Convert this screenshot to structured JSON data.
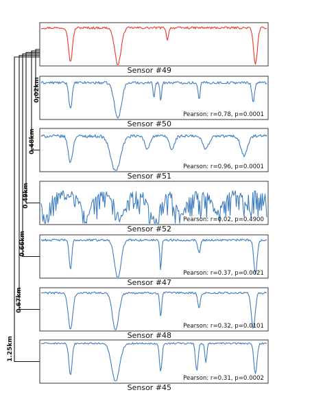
{
  "chart_data": {
    "type": "line",
    "colors": {
      "reference": "#ee3322",
      "comparison": "#3b7bbf"
    },
    "tree_distances": [
      "0.02km",
      "0.48km",
      "0.49km",
      "0.66km",
      "0.67km",
      "1.25km"
    ],
    "panels": [
      {
        "sensor": "Sensor #49",
        "stat": "",
        "role": "reference",
        "baseline": 0.88,
        "noise": 0.05,
        "chaos": 0,
        "dips": [
          [
            0.13,
            0.78,
            0.012
          ],
          [
            0.34,
            0.85,
            0.02
          ],
          [
            0.56,
            0.3,
            0.006
          ],
          [
            0.95,
            0.83,
            0.012
          ]
        ]
      },
      {
        "sensor": "Sensor #50",
        "stat": "Pearson: r=0.78, p=0.0001",
        "role": "comparison",
        "baseline": 0.85,
        "noise": 0.06,
        "chaos": 0,
        "dips": [
          [
            0.13,
            0.6,
            0.01
          ],
          [
            0.34,
            0.82,
            0.022
          ],
          [
            0.5,
            0.35,
            0.005
          ],
          [
            0.53,
            0.45,
            0.005
          ],
          [
            0.7,
            0.4,
            0.006
          ],
          [
            0.94,
            0.45,
            0.008
          ]
        ]
      },
      {
        "sensor": "Sensor #51",
        "stat": "Pearson: r=0.96, p=0.0001",
        "role": "comparison",
        "baseline": 0.82,
        "noise": 0.07,
        "chaos": 0,
        "dips": [
          [
            0.13,
            0.6,
            0.014
          ],
          [
            0.33,
            0.82,
            0.03
          ],
          [
            0.47,
            0.3,
            0.015
          ],
          [
            0.58,
            0.32,
            0.015
          ],
          [
            0.73,
            0.28,
            0.02
          ],
          [
            0.9,
            0.45,
            0.02
          ]
        ]
      },
      {
        "sensor": "Sensor #52",
        "stat": "Pearson: r=0.02, p=0.4900",
        "role": "comparison",
        "baseline": 0.72,
        "noise": 0.15,
        "chaos": 0.55,
        "dips": [
          [
            0.02,
            0.6,
            0.02
          ],
          [
            0.2,
            0.5,
            0.03
          ],
          [
            0.35,
            0.55,
            0.03
          ],
          [
            0.5,
            0.6,
            0.03
          ],
          [
            0.62,
            0.5,
            0.03
          ],
          [
            0.78,
            0.45,
            0.03
          ]
        ]
      },
      {
        "sensor": "Sensor #47",
        "stat": "Pearson: r=0.37, p=0.0021",
        "role": "comparison",
        "baseline": 0.88,
        "noise": 0.05,
        "chaos": 0,
        "dips": [
          [
            0.13,
            0.7,
            0.008
          ],
          [
            0.34,
            0.87,
            0.02
          ],
          [
            0.53,
            0.72,
            0.005
          ],
          [
            0.7,
            0.3,
            0.008
          ],
          [
            0.95,
            0.8,
            0.01
          ]
        ]
      },
      {
        "sensor": "Sensor #48",
        "stat": "Pearson: r=0.32, p=0.0101",
        "role": "comparison",
        "baseline": 0.88,
        "noise": 0.05,
        "chaos": 0,
        "dips": [
          [
            0.13,
            0.85,
            0.014
          ],
          [
            0.33,
            0.86,
            0.02
          ],
          [
            0.53,
            0.55,
            0.006
          ],
          [
            0.7,
            0.35,
            0.008
          ],
          [
            0.94,
            0.82,
            0.012
          ]
        ]
      },
      {
        "sensor": "Sensor #45",
        "stat": "Pearson: r=0.31, p=0.0002",
        "role": "comparison",
        "baseline": 0.92,
        "noise": 0.04,
        "chaos": 0,
        "dips": [
          [
            0.13,
            0.75,
            0.01
          ],
          [
            0.33,
            0.88,
            0.025
          ],
          [
            0.53,
            0.65,
            0.008
          ],
          [
            0.69,
            0.65,
            0.008
          ],
          [
            0.73,
            0.45,
            0.006
          ],
          [
            0.95,
            0.7,
            0.01
          ]
        ]
      }
    ]
  }
}
